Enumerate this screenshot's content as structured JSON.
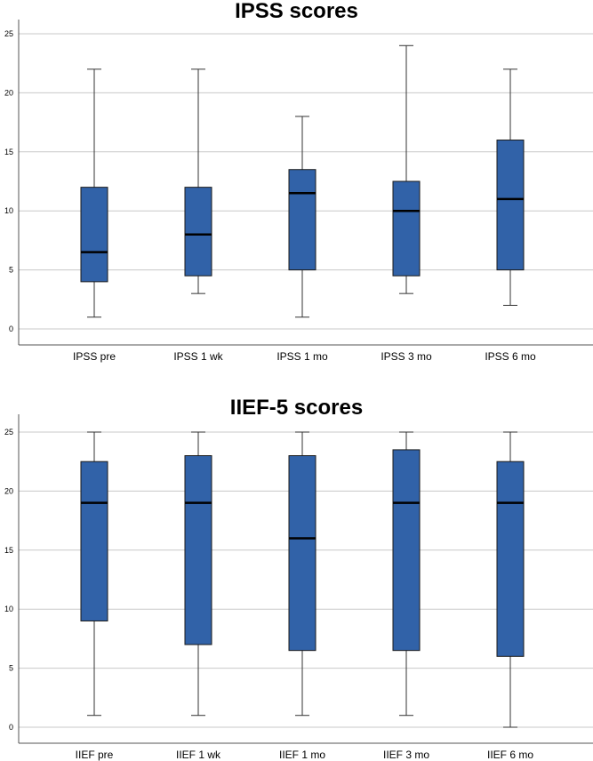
{
  "chart_data": [
    {
      "type": "box",
      "title": "IPSS scores",
      "xlabel": "",
      "ylabel": "",
      "ylim": [
        0,
        25
      ],
      "yticks": [
        "0",
        "5",
        "10",
        "15",
        "20",
        "25"
      ],
      "grid": true,
      "categories": [
        "IPSS pre",
        "IPSS 1 wk",
        "IPSS 1 mo",
        "IPSS 3 mo",
        "IPSS 6 mo"
      ],
      "boxes": [
        {
          "min": 1,
          "q1": 4,
          "median": 6.5,
          "q3": 12,
          "max": 22
        },
        {
          "min": 3,
          "q1": 4.5,
          "median": 8,
          "q3": 12,
          "max": 22
        },
        {
          "min": 1,
          "q1": 5,
          "median": 11.5,
          "q3": 13.5,
          "max": 18
        },
        {
          "min": 3,
          "q1": 4.5,
          "median": 10,
          "q3": 12.5,
          "max": 24
        },
        {
          "min": 2,
          "q1": 5,
          "median": 11,
          "q3": 16,
          "max": 22
        }
      ],
      "box_color": "#3162a8"
    },
    {
      "type": "box",
      "title": "IIEF-5 scores",
      "xlabel": "",
      "ylabel": "",
      "ylim": [
        0,
        25
      ],
      "yticks": [
        "0",
        "5",
        "10",
        "15",
        "20",
        "25"
      ],
      "grid": true,
      "categories": [
        "IIEF pre",
        "IIEF 1 wk",
        "IIEF 1 mo",
        "IIEF 3 mo",
        "IIEF 6 mo"
      ],
      "boxes": [
        {
          "min": 1,
          "q1": 9,
          "median": 19,
          "q3": 22.5,
          "max": 25
        },
        {
          "min": 1,
          "q1": 7,
          "median": 19,
          "q3": 23,
          "max": 25
        },
        {
          "min": 1,
          "q1": 6.5,
          "median": 16,
          "q3": 23,
          "max": 25
        },
        {
          "min": 1,
          "q1": 6.5,
          "median": 19,
          "q3": 23.5,
          "max": 25
        },
        {
          "min": 0,
          "q1": 6,
          "median": 19,
          "q3": 22.5,
          "max": 25
        }
      ],
      "box_color": "#3162a8"
    }
  ]
}
